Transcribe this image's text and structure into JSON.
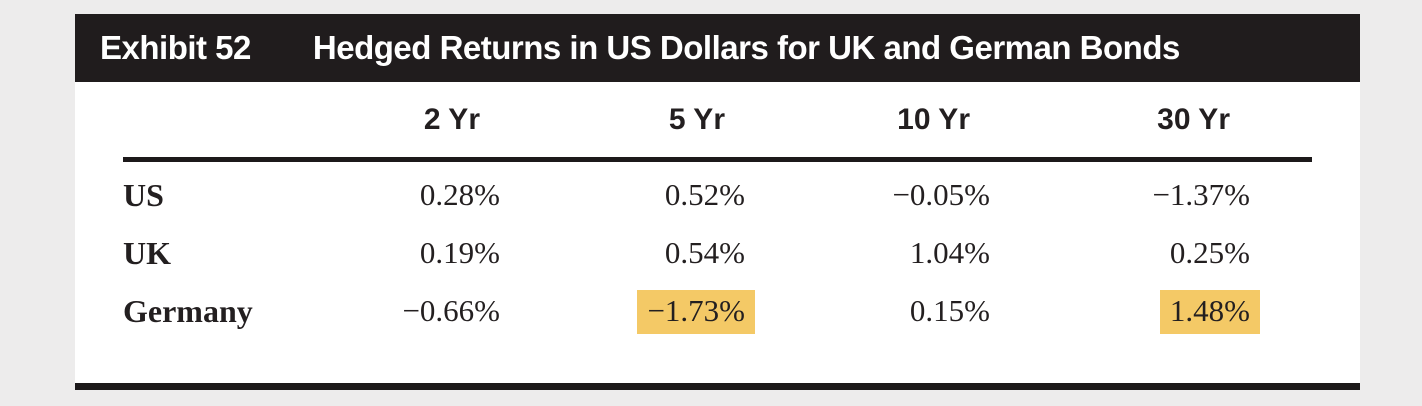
{
  "exhibit": {
    "label": "Exhibit 52",
    "title": "Hedged Returns in US Dollars for UK and German Bonds"
  },
  "table": {
    "columns": [
      "2 Yr",
      "5 Yr",
      "10 Yr",
      "30 Yr"
    ],
    "rows": [
      {
        "label": "US",
        "values": [
          "0.28%",
          "0.52%",
          "−0.05%",
          "−1.37%"
        ],
        "highlighted": [
          false,
          false,
          false,
          false
        ]
      },
      {
        "label": "UK",
        "values": [
          "0.19%",
          "0.54%",
          "1.04%",
          "0.25%"
        ],
        "highlighted": [
          false,
          false,
          false,
          false
        ]
      },
      {
        "label": "Germany",
        "values": [
          "−0.66%",
          "−1.73%",
          "0.15%",
          "1.48%"
        ],
        "highlighted": [
          false,
          true,
          false,
          true
        ]
      }
    ]
  },
  "colors": {
    "page_background": "#EDECEC",
    "title_bar_background": "#201C1D",
    "title_text": "#FFFFFF",
    "body_text": "#231F20",
    "rule": "#1C191A",
    "highlight": "#F4C966"
  }
}
